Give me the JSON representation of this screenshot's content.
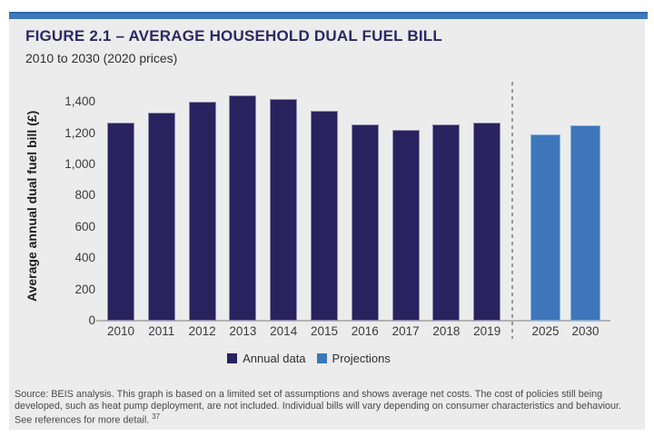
{
  "header": {
    "figure_label": "FIGURE 2.1 – AVERAGE HOUSEHOLD DUAL FUEL BILL",
    "subtitle": "2010 to 2030 (2020 prices)"
  },
  "chart_data": {
    "type": "bar",
    "title": "FIGURE 2.1 – AVERAGE HOUSEHOLD DUAL FUEL BILL",
    "subtitle": "2010 to 2030 (2020 prices)",
    "xlabel": "",
    "ylabel": "Average annual dual fuel bill (£)",
    "ylim": [
      0,
      1400
    ],
    "yticks": [
      0,
      200,
      400,
      600,
      800,
      1000,
      1200,
      1400
    ],
    "ytick_labels": [
      "0",
      "200",
      "400",
      "600",
      "800",
      "1,000",
      "1,200",
      "1,400"
    ],
    "grid": false,
    "legend_position": "bottom",
    "divider_note": "dashed vertical line separates annual data from projections",
    "series": [
      {
        "name": "Annual data",
        "color": "#28225e",
        "categories": [
          "2010",
          "2011",
          "2012",
          "2013",
          "2014",
          "2015",
          "2016",
          "2017",
          "2018",
          "2019"
        ],
        "values": [
          1265,
          1330,
          1400,
          1440,
          1420,
          1345,
          1255,
          1220,
          1255,
          1270
        ]
      },
      {
        "name": "Projections",
        "color": "#3d77ba",
        "categories": [
          "2025",
          "2030"
        ],
        "values": [
          1190,
          1250
        ]
      }
    ]
  },
  "legend": {
    "items": [
      {
        "label": "Annual data",
        "color": "#28225e"
      },
      {
        "label": "Projections",
        "color": "#3d77ba"
      }
    ]
  },
  "footer": {
    "source_text": "Source: BEIS analysis. This graph is based on a limited set of assumptions and shows average net costs. The cost of policies still being developed, such as heat pump deployment, are not included. Individual bills will vary depending on consumer characteristics and behaviour. See references for more detail.",
    "footnote_ref": "37"
  },
  "colors": {
    "accent_bar": "#3d78ba",
    "panel_background": "#ececec",
    "title_navy": "#2d2766",
    "annual_bar": "#28225e",
    "projection_bar": "#3d77ba",
    "axis_line": "#b3b3b3"
  }
}
